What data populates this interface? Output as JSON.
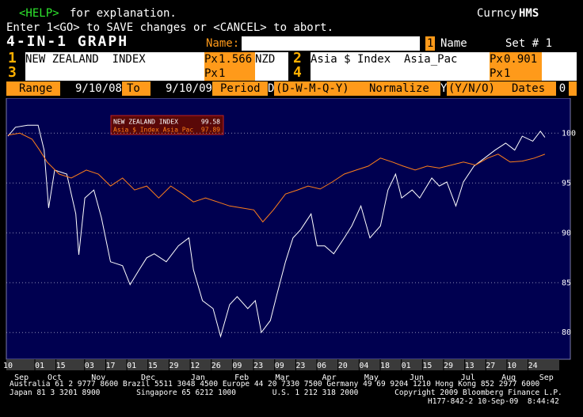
{
  "header": {
    "help_key": "<HELP>",
    "help_text": "for explanation.",
    "ticker": "Curncy",
    "function": "HMS",
    "enter_line": "Enter 1<GO> to SAVE changes or <CANCEL> to abort.",
    "title": "4-IN-1 GRAPH",
    "name_label": "Name:",
    "set_num": "1",
    "name_suffix": "Name",
    "set_label": "Set # 1"
  },
  "securities": [
    {
      "num": "1",
      "name": "NEW ZEALAND  INDEX",
      "px_label": "Px",
      "px": "1.566",
      "suffix": "NZD"
    },
    {
      "num": "2",
      "name": "Asia $ Index  Asia_Pac",
      "px_label": "Px",
      "px": "0.901"
    },
    {
      "num": "3",
      "px_label": "Px",
      "px": "1"
    },
    {
      "num": "4",
      "px_label": "Px",
      "px": "1"
    }
  ],
  "range_bar": {
    "range": "Range",
    "start": "9/10/08",
    "to": "To",
    "end": "9/10/09",
    "period": "Period",
    "period_val": "D",
    "period_opts": "(D-W-M-Q-Y)",
    "normalize": "Normalize",
    "norm_val": "Y",
    "norm_opts": "(Y/N/O)",
    "dates": "Dates",
    "dates_val": "0"
  },
  "chart_data": {
    "type": "line",
    "xlim": [
      0,
      365
    ],
    "ylim": [
      77.4,
      103.2
    ],
    "yticks": [
      80,
      85,
      90,
      95,
      100
    ],
    "grid": true,
    "xticks": [
      {
        "value": 0,
        "label": "10"
      },
      {
        "value": 21,
        "label": "01"
      },
      {
        "value": 35,
        "label": "15"
      },
      {
        "value": 54,
        "label": "03"
      },
      {
        "value": 68,
        "label": "17"
      },
      {
        "value": 82,
        "label": "01"
      },
      {
        "value": 96,
        "label": "15"
      },
      {
        "value": 110,
        "label": "29"
      },
      {
        "value": 124,
        "label": "12"
      },
      {
        "value": 138,
        "label": "26"
      },
      {
        "value": 152,
        "label": "09"
      },
      {
        "value": 166,
        "label": "23"
      },
      {
        "value": 180,
        "label": "09"
      },
      {
        "value": 194,
        "label": "23"
      },
      {
        "value": 208,
        "label": "06"
      },
      {
        "value": 222,
        "label": "20"
      },
      {
        "value": 236,
        "label": "04"
      },
      {
        "value": 250,
        "label": "18"
      },
      {
        "value": 264,
        "label": "01"
      },
      {
        "value": 278,
        "label": "15"
      },
      {
        "value": 292,
        "label": "29"
      },
      {
        "value": 306,
        "label": "13"
      },
      {
        "value": 320,
        "label": "27"
      },
      {
        "value": 334,
        "label": "10"
      },
      {
        "value": 348,
        "label": "24"
      }
    ],
    "month_labels": [
      {
        "value": 9,
        "label": "Sep"
      },
      {
        "value": 31,
        "label": "Oct"
      },
      {
        "value": 60,
        "label": "Nov"
      },
      {
        "value": 93,
        "label": "Dec"
      },
      {
        "value": 126,
        "label": "Jan"
      },
      {
        "value": 155,
        "label": "Feb"
      },
      {
        "value": 182,
        "label": "Mar"
      },
      {
        "value": 213,
        "label": "Apr"
      },
      {
        "value": 241,
        "label": "May"
      },
      {
        "value": 271,
        "label": "Jun"
      },
      {
        "value": 305,
        "label": "Jul"
      },
      {
        "value": 332,
        "label": "Aug"
      },
      {
        "value": 357,
        "label": "Sep"
      }
    ],
    "series": [
      {
        "name": "NEW ZEALAND  INDEX",
        "color": "#ffffff",
        "last_value": 99.58,
        "x": [
          0,
          5,
          13,
          20,
          24,
          27,
          31,
          39,
          45,
          47,
          51,
          57,
          62,
          68,
          76,
          81,
          87,
          92,
          97,
          105,
          113,
          120,
          123,
          129,
          136,
          141,
          147,
          152,
          159,
          164,
          168,
          174,
          178,
          184,
          189,
          194,
          201,
          205,
          210,
          216,
          223,
          228,
          234,
          240,
          247,
          252,
          257,
          261,
          268,
          273,
          281,
          286,
          291,
          297,
          302,
          309,
          316,
          323,
          330,
          336,
          341,
          348,
          353,
          356
        ],
        "values": [
          99.7,
          100.6,
          100.8,
          100.8,
          98.3,
          92.5,
          96.3,
          95.9,
          91.9,
          87.8,
          93.5,
          94.3,
          91.5,
          87.1,
          86.7,
          84.8,
          86.3,
          87.5,
          87.9,
          87.1,
          88.7,
          89.5,
          86.3,
          83.2,
          82.4,
          79.6,
          82.8,
          83.6,
          82.4,
          83.2,
          80.0,
          81.2,
          83.6,
          87.1,
          89.5,
          90.3,
          91.9,
          88.7,
          88.7,
          87.9,
          89.5,
          90.7,
          92.7,
          89.5,
          90.7,
          94.3,
          95.9,
          93.5,
          94.3,
          93.5,
          95.5,
          94.7,
          95.1,
          92.7,
          95.1,
          96.7,
          97.5,
          98.3,
          99.0,
          98.3,
          99.7,
          99.2,
          100.2,
          99.58
        ]
      },
      {
        "name": "Asia $ Index  Asia_Pac",
        "color": "#ff7f1a",
        "last_value": 97.89,
        "x": [
          0,
          8,
          16,
          21,
          26,
          34,
          42,
          52,
          60,
          68,
          76,
          84,
          92,
          100,
          108,
          116,
          123,
          131,
          139,
          147,
          155,
          163,
          169,
          176,
          184,
          192,
          199,
          207,
          215,
          223,
          231,
          239,
          247,
          255,
          262,
          270,
          278,
          286,
          294,
          302,
          310,
          318,
          325,
          333,
          341,
          349,
          356
        ],
        "values": [
          99.8,
          100.0,
          99.4,
          98.3,
          97.1,
          95.9,
          95.5,
          96.3,
          95.9,
          94.7,
          95.5,
          94.3,
          94.7,
          93.5,
          94.7,
          93.9,
          93.1,
          93.5,
          93.1,
          92.7,
          92.5,
          92.3,
          91.1,
          92.3,
          93.9,
          94.3,
          94.7,
          94.4,
          95.1,
          95.9,
          96.3,
          96.7,
          97.5,
          97.1,
          96.7,
          96.3,
          96.7,
          96.5,
          96.8,
          97.1,
          96.8,
          97.5,
          97.9,
          97.1,
          97.2,
          97.5,
          97.89
        ]
      }
    ]
  },
  "footer": [
    "Australia 61 2 9777 8600 Brazil 5511 3048 4500 Europe 44 20 7330 7500 Germany 49 69 9204 1210 Hong Kong 852 2977 6000",
    "Japan 81 3 3201 8900        Singapore 65 6212 1000        U.S. 1 212 318 2000        Copyright 2009 Bloomberg Finance L.P.",
    "H177-842-2 10-Sep-09  8:44:42"
  ]
}
